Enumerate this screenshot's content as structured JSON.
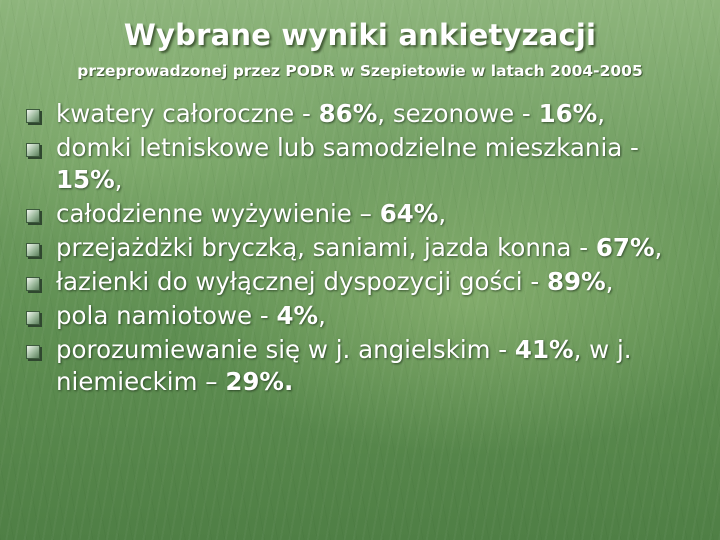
{
  "slide": {
    "title": "Wybrane wyniki ankietyzacji",
    "subtitle": "przeprowadzonej przez PODR w Szepietowie w latach 2004-2005",
    "bullets": [
      {
        "parts": [
          {
            "text": "kwatery całoroczne - ",
            "bold": false
          },
          {
            "text": "86%",
            "bold": true
          },
          {
            "text": ", sezonowe - ",
            "bold": false
          },
          {
            "text": "16%",
            "bold": true
          },
          {
            "text": ",",
            "bold": false
          }
        ]
      },
      {
        "parts": [
          {
            "text": "domki letniskowe lub samodzielne mieszkania - ",
            "bold": false
          },
          {
            "text": "15%",
            "bold": true
          },
          {
            "text": ",",
            "bold": false
          }
        ]
      },
      {
        "parts": [
          {
            "text": "całodzienne wyżywienie – ",
            "bold": false
          },
          {
            "text": "64%",
            "bold": true
          },
          {
            "text": ",",
            "bold": false
          }
        ]
      },
      {
        "parts": [
          {
            "text": "przejażdżki bryczką, saniami, jazda konna - ",
            "bold": false
          },
          {
            "text": "67%",
            "bold": true
          },
          {
            "text": ",",
            "bold": false
          }
        ]
      },
      {
        "parts": [
          {
            "text": "łazienki do wyłącznej dyspozycji gości - ",
            "bold": false
          },
          {
            "text": "89%",
            "bold": true
          },
          {
            "text": ",",
            "bold": false
          }
        ]
      },
      {
        "parts": [
          {
            "text": "pola namiotowe - ",
            "bold": false
          },
          {
            "text": "4%",
            "bold": true
          },
          {
            "text": ",",
            "bold": false
          }
        ]
      },
      {
        "parts": [
          {
            "text": "porozumiewanie się w j. angielskim - ",
            "bold": false
          },
          {
            "text": "41%",
            "bold": true
          },
          {
            "text": ", w j. niemieckim – ",
            "bold": false
          },
          {
            "text": "29%",
            "bold": true
          },
          {
            "text": ".",
            "bold": true
          }
        ]
      }
    ]
  }
}
